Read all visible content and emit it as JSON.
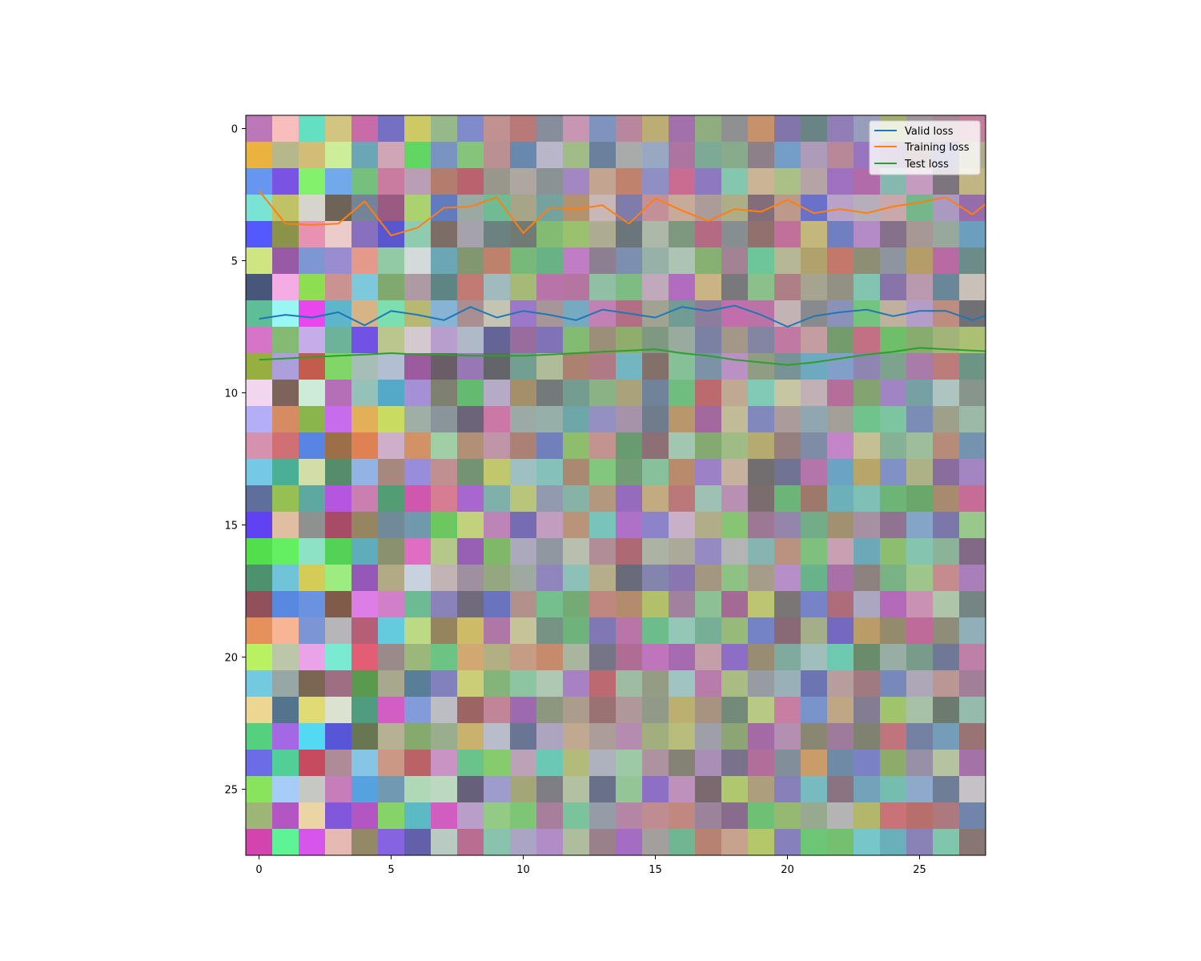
{
  "chart_data": {
    "type": "heatmap",
    "title": "",
    "xlabel": "",
    "ylabel": "",
    "heatmap": {
      "rows": 28,
      "cols": 28,
      "description_rows": "Each row is a gradient of RGB mosaic cells; values represent pixel colors of a 28x28 image"
    },
    "xlim": [
      -0.5,
      27.5
    ],
    "ylim": [
      27.5,
      -0.5
    ],
    "x_ticks": [
      0,
      5,
      10,
      15,
      20,
      25
    ],
    "y_ticks": [
      0,
      5,
      10,
      15,
      20,
      25
    ],
    "series": [
      {
        "name": "Valid loss",
        "color": "#1f77b4",
        "x": [
          0,
          1,
          2,
          3,
          4,
          5,
          6,
          7,
          8,
          9,
          10,
          11,
          12,
          13,
          14,
          15,
          16,
          17,
          18,
          19,
          20,
          21,
          22,
          23,
          24,
          25,
          26,
          27,
          28
        ],
        "values": [
          7.2,
          7.05,
          7.15,
          6.95,
          7.45,
          6.9,
          7.05,
          7.25,
          6.75,
          7.15,
          6.9,
          7.05,
          7.25,
          6.85,
          7.0,
          7.15,
          6.75,
          6.9,
          6.7,
          7.05,
          7.5,
          7.1,
          6.95,
          6.85,
          7.1,
          6.9,
          6.9,
          7.25,
          6.9
        ]
      },
      {
        "name": "Training loss",
        "color": "#ff7f0e",
        "x": [
          0,
          1,
          2,
          3,
          4,
          5,
          6,
          7,
          8,
          9,
          10,
          11,
          12,
          13,
          14,
          15,
          16,
          17,
          18,
          19,
          20,
          21,
          22,
          23,
          24,
          25,
          26,
          27,
          28
        ],
        "values": [
          2.35,
          3.6,
          3.65,
          3.6,
          2.75,
          4.05,
          3.75,
          3.0,
          2.95,
          2.6,
          3.95,
          3.0,
          3.05,
          2.9,
          3.6,
          2.65,
          3.1,
          3.5,
          3.05,
          3.15,
          2.7,
          3.2,
          3.05,
          3.2,
          2.95,
          2.8,
          2.6,
          3.25,
          2.45
        ]
      },
      {
        "name": "Test loss",
        "color": "#2ca02c",
        "x": [
          0,
          1,
          2,
          3,
          4,
          5,
          6,
          7,
          8,
          9,
          10,
          11,
          12,
          13,
          14,
          15,
          16,
          17,
          18,
          19,
          20,
          21,
          22,
          23,
          24,
          25,
          26,
          27,
          28
        ],
        "values": [
          8.75,
          8.7,
          8.65,
          8.6,
          8.55,
          8.5,
          8.55,
          8.55,
          8.6,
          8.6,
          8.6,
          8.55,
          8.5,
          8.45,
          8.4,
          8.35,
          8.5,
          8.6,
          8.75,
          8.85,
          8.95,
          8.85,
          8.7,
          8.55,
          8.45,
          8.3,
          8.35,
          8.4,
          8.45
        ]
      }
    ],
    "legend": {
      "location": "upper right",
      "entries": [
        "Valid loss",
        "Training loss",
        "Test loss"
      ]
    }
  },
  "tick_labels": {
    "x": [
      "0",
      "5",
      "10",
      "15",
      "20",
      "25"
    ],
    "y": [
      "0",
      "5",
      "10",
      "15",
      "20",
      "25"
    ]
  },
  "legend_labels": {
    "valid": "Valid loss",
    "training": "Training loss",
    "test": "Test loss"
  },
  "colors": {
    "valid": "#1f77b4",
    "training": "#ff7f0e",
    "test": "#2ca02c",
    "background": "#ffffff"
  }
}
